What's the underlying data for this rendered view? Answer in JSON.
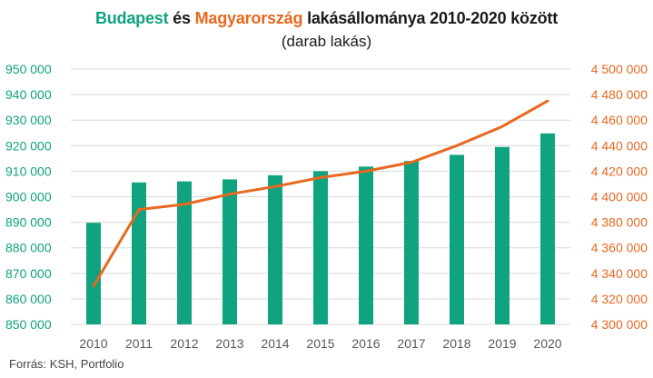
{
  "title": {
    "part1": "Budapest",
    "part2": " és ",
    "part3": "Magyarország",
    "part4": " lakásállománya 2010-2020 között"
  },
  "subtitle": "(darab lakás)",
  "source": "Forrás: KSH, Portfolio",
  "colors": {
    "budapest": "#0fa37f",
    "magyarorszag": "#e8681f",
    "grid": "#d9d9d9",
    "text": "#1a1a1a"
  },
  "chart_data": {
    "type": "bar",
    "categories": [
      "2010",
      "2011",
      "2012",
      "2013",
      "2014",
      "2015",
      "2016",
      "2017",
      "2018",
      "2019",
      "2020"
    ],
    "series": [
      {
        "name": "Budapest",
        "type": "bar",
        "axis": "left",
        "values": [
          889800,
          905600,
          906000,
          906800,
          908400,
          910000,
          911800,
          914000,
          916400,
          919500,
          924800
        ]
      },
      {
        "name": "Magyarország",
        "type": "line",
        "axis": "right",
        "values": [
          4330000,
          4390000,
          4394000,
          4402000,
          4408000,
          4415000,
          4420000,
          4427000,
          4440000,
          4455000,
          4475000
        ]
      }
    ],
    "ylim_left": [
      850000,
      950000
    ],
    "ylim_right": [
      4300000,
      4500000
    ],
    "yticks_left": [
      "850 000",
      "860 000",
      "870 000",
      "880 000",
      "890 000",
      "900 000",
      "910 000",
      "920 000",
      "930 000",
      "940 000",
      "950 000"
    ],
    "yticks_right": [
      "4 300 000",
      "4 320 000",
      "4 340 000",
      "4 360 000",
      "4 380 000",
      "4 400 000",
      "4 420 000",
      "4 440 000",
      "4 460 000",
      "4 480 000",
      "4 500 000"
    ],
    "grid": "horizontal"
  }
}
